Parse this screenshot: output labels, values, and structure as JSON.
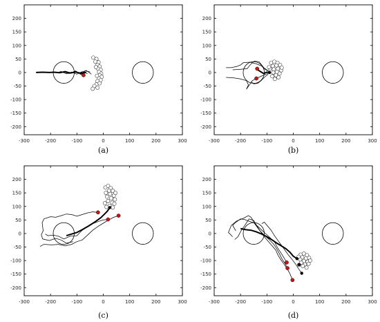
{
  "chart_data": [
    {
      "type": "scatter",
      "label": "(a)",
      "xlim": [
        -300,
        300
      ],
      "ylim": [
        -230,
        250
      ],
      "xticks": [
        -300,
        -200,
        -100,
        0,
        100,
        200,
        300
      ],
      "yticks": [
        -200,
        -150,
        -100,
        -50,
        0,
        50,
        100,
        150,
        200
      ],
      "circles": [
        {
          "cx": -150,
          "cy": 0,
          "r": 40
        },
        {
          "cx": 150,
          "cy": 0,
          "r": 40
        }
      ],
      "swarm": [
        [
          -38,
          55
        ],
        [
          -26,
          50
        ],
        [
          -30,
          40
        ],
        [
          -18,
          38
        ],
        [
          -22,
          28
        ],
        [
          -14,
          22
        ],
        [
          -20,
          14
        ],
        [
          -10,
          10
        ],
        [
          -16,
          2
        ],
        [
          -8,
          -4
        ],
        [
          -14,
          -10
        ],
        [
          -6,
          -16
        ],
        [
          -16,
          -22
        ],
        [
          -10,
          -28
        ],
        [
          -22,
          -32
        ],
        [
          -14,
          -40
        ],
        [
          -26,
          -44
        ],
        [
          -34,
          -50
        ],
        [
          -22,
          -56
        ],
        [
          -40,
          -60
        ],
        [
          -28,
          20
        ],
        [
          -24,
          -12
        ]
      ],
      "red_agents": [
        [
          -75,
          -10
        ]
      ],
      "black_agents": [],
      "bold_paths": [
        [
          [
            -65,
            0
          ],
          [
            -85,
            -3
          ],
          [
            -105,
            2
          ],
          [
            -125,
            -2
          ],
          [
            -145,
            3
          ],
          [
            -165,
            -1
          ],
          [
            -185,
            1
          ],
          [
            -205,
            0
          ],
          [
            -230,
            1
          ],
          [
            -255,
            0
          ]
        ]
      ],
      "thin_paths": [
        [
          [
            -50,
            2
          ],
          [
            -70,
            6
          ],
          [
            -90,
            -2
          ],
          [
            -110,
            4
          ],
          [
            -130,
            -4
          ],
          [
            -150,
            2
          ],
          [
            -170,
            -2
          ],
          [
            -190,
            3
          ]
        ],
        [
          [
            -60,
            -4
          ],
          [
            -80,
            3
          ],
          [
            -100,
            -6
          ],
          [
            -120,
            2
          ],
          [
            -140,
            -5
          ],
          [
            -160,
            4
          ],
          [
            -180,
            -2
          ]
        ],
        [
          [
            -45,
            -6
          ],
          [
            -65,
            8
          ],
          [
            -85,
            -8
          ],
          [
            -105,
            6
          ],
          [
            -125,
            -3
          ],
          [
            -145,
            5
          ]
        ]
      ]
    },
    {
      "type": "scatter",
      "label": "(b)",
      "xlim": [
        -300,
        300
      ],
      "ylim": [
        -230,
        250
      ],
      "xticks": [
        -300,
        -200,
        -100,
        0,
        100,
        200,
        300
      ],
      "yticks": [
        -200,
        -150,
        -100,
        -50,
        0,
        50,
        100,
        150,
        200
      ],
      "circles": [
        {
          "cx": -150,
          "cy": 0,
          "r": 40
        },
        {
          "cx": 150,
          "cy": 0,
          "r": 40
        }
      ],
      "swarm": [
        [
          -84,
          36
        ],
        [
          -72,
          40
        ],
        [
          -60,
          36
        ],
        [
          -50,
          28
        ],
        [
          -64,
          26
        ],
        [
          -78,
          24
        ],
        [
          -88,
          14
        ],
        [
          -74,
          12
        ],
        [
          -58,
          14
        ],
        [
          -46,
          8
        ],
        [
          -62,
          2
        ],
        [
          -76,
          0
        ],
        [
          -52,
          -4
        ],
        [
          -66,
          -10
        ],
        [
          -80,
          -14
        ],
        [
          -56,
          -18
        ],
        [
          -70,
          -24
        ],
        [
          -92,
          20
        ],
        [
          -44,
          18
        ]
      ],
      "red_agents": [
        [
          -137,
          14
        ],
        [
          -140,
          -22
        ]
      ],
      "black_agents": [
        [
          -90,
          0
        ]
      ],
      "bold_paths": [
        [
          [
            -90,
            0
          ],
          [
            -102,
            1
          ],
          [
            -112,
            -4
          ],
          [
            -122,
            2
          ],
          [
            -132,
            8
          ],
          [
            -137,
            14
          ]
        ]
      ],
      "thin_paths": [
        [
          [
            -92,
            4
          ],
          [
            -108,
            12
          ],
          [
            -120,
            24
          ],
          [
            -140,
            32
          ],
          [
            -165,
            38
          ],
          [
            -190,
            36
          ],
          [
            -200,
            28
          ],
          [
            -215,
            22
          ],
          [
            -235,
            18
          ],
          [
            -255,
            18
          ]
        ],
        [
          [
            -92,
            -2
          ],
          [
            -108,
            -8
          ],
          [
            -122,
            -14
          ],
          [
            -140,
            -22
          ],
          [
            -155,
            -30
          ],
          [
            -168,
            -48
          ],
          [
            -178,
            -62
          ],
          [
            -170,
            -46
          ],
          [
            -178,
            -30
          ],
          [
            -200,
            -24
          ],
          [
            -225,
            -20
          ],
          [
            -255,
            -18
          ]
        ],
        [
          [
            -95,
            -6
          ],
          [
            -110,
            -18
          ],
          [
            -122,
            -30
          ],
          [
            -135,
            -40
          ],
          [
            -150,
            -42
          ],
          [
            -160,
            -34
          ]
        ],
        [
          [
            -95,
            6
          ],
          [
            -112,
            18
          ],
          [
            -130,
            40
          ],
          [
            -148,
            42
          ],
          [
            -162,
            30
          ],
          [
            -175,
            14
          ],
          [
            -200,
            12
          ],
          [
            -230,
            10
          ]
        ]
      ]
    },
    {
      "type": "scatter",
      "label": "(c)",
      "xlim": [
        -300,
        300
      ],
      "ylim": [
        -230,
        250
      ],
      "xticks": [
        -300,
        -200,
        -100,
        0,
        100,
        200,
        300
      ],
      "yticks": [
        -200,
        -150,
        -100,
        -50,
        0,
        50,
        100,
        150,
        200
      ],
      "circles": [
        {
          "cx": -150,
          "cy": 0,
          "r": 40
        },
        {
          "cx": 150,
          "cy": 0,
          "r": 40
        }
      ],
      "swarm": [
        [
          8,
          170
        ],
        [
          18,
          176
        ],
        [
          28,
          168
        ],
        [
          36,
          158
        ],
        [
          22,
          158
        ],
        [
          10,
          150
        ],
        [
          26,
          146
        ],
        [
          40,
          140
        ],
        [
          14,
          136
        ],
        [
          30,
          130
        ],
        [
          44,
          126
        ],
        [
          18,
          120
        ],
        [
          34,
          114
        ],
        [
          6,
          112
        ],
        [
          24,
          102
        ],
        [
          42,
          110
        ],
        [
          12,
          98
        ],
        [
          36,
          96
        ],
        [
          46,
          150
        ]
      ],
      "red_agents": [
        [
          -20,
          78
        ],
        [
          18,
          52
        ],
        [
          58,
          66
        ]
      ],
      "black_agents": [
        [
          25,
          96
        ]
      ],
      "bold_paths": [
        [
          [
            25,
            96
          ],
          [
            15,
            82
          ],
          [
            5,
            72
          ],
          [
            -10,
            58
          ],
          [
            -30,
            44
          ],
          [
            -55,
            28
          ],
          [
            -80,
            14
          ],
          [
            -100,
            4
          ],
          [
            -120,
            -2
          ],
          [
            -140,
            -8
          ]
        ]
      ],
      "thin_paths": [
        [
          [
            -20,
            78
          ],
          [
            -40,
            80
          ],
          [
            -60,
            76
          ],
          [
            -80,
            70
          ],
          [
            -100,
            64
          ],
          [
            -120,
            70
          ],
          [
            -140,
            72
          ],
          [
            -160,
            66
          ],
          [
            -180,
            60
          ],
          [
            -200,
            62
          ],
          [
            -225,
            54
          ],
          [
            -232,
            40
          ],
          [
            -228,
            10
          ],
          [
            -235,
            -4
          ],
          [
            -230,
            -20
          ],
          [
            -205,
            -26
          ],
          [
            -180,
            -18
          ],
          [
            -160,
            -24
          ],
          [
            -140,
            -36
          ],
          [
            -115,
            -30
          ]
        ],
        [
          [
            18,
            52
          ],
          [
            0,
            50
          ],
          [
            -20,
            44
          ],
          [
            -40,
            36
          ],
          [
            -62,
            24
          ],
          [
            -82,
            10
          ],
          [
            -100,
            -8
          ],
          [
            -125,
            -10
          ],
          [
            -150,
            -20
          ],
          [
            -170,
            -10
          ],
          [
            -190,
            -6
          ],
          [
            -210,
            -8
          ],
          [
            -220,
            -2
          ]
        ],
        [
          [
            58,
            66
          ],
          [
            40,
            60
          ],
          [
            20,
            50
          ],
          [
            0,
            38
          ],
          [
            -20,
            26
          ],
          [
            -40,
            12
          ],
          [
            -60,
            -6
          ],
          [
            -80,
            -24
          ],
          [
            -100,
            -30
          ],
          [
            -120,
            -40
          ],
          [
            -145,
            -46
          ],
          [
            -170,
            -40
          ],
          [
            -195,
            -42
          ],
          [
            -225,
            -40
          ],
          [
            -240,
            -48
          ]
        ]
      ]
    },
    {
      "type": "scatter",
      "label": "(d)",
      "xlim": [
        -300,
        300
      ],
      "ylim": [
        -230,
        250
      ],
      "xticks": [
        -300,
        -200,
        -100,
        0,
        100,
        200,
        300
      ],
      "yticks": [
        -200,
        -150,
        -100,
        -50,
        0,
        50,
        100,
        150,
        200
      ],
      "circles": [
        {
          "cx": -150,
          "cy": 0,
          "r": 40
        },
        {
          "cx": 150,
          "cy": 0,
          "r": 40
        }
      ],
      "swarm": [
        [
          28,
          -78
        ],
        [
          40,
          -74
        ],
        [
          52,
          -80
        ],
        [
          34,
          -88
        ],
        [
          48,
          -92
        ],
        [
          60,
          -90
        ],
        [
          26,
          -96
        ],
        [
          40,
          -102
        ],
        [
          54,
          -104
        ],
        [
          30,
          -108
        ],
        [
          44,
          -114
        ],
        [
          58,
          -112
        ],
        [
          36,
          -120
        ],
        [
          50,
          -126
        ],
        [
          22,
          -116
        ],
        [
          64,
          -100
        ],
        [
          20,
          -86
        ]
      ],
      "red_agents": [
        [
          -25,
          -107
        ],
        [
          -22,
          -128
        ],
        [
          -3,
          -172
        ]
      ],
      "black_agents": [
        [
          14,
          -93
        ],
        [
          22,
          -115
        ],
        [
          32,
          -147
        ]
      ],
      "bold_paths": [
        [
          [
            14,
            -93
          ],
          [
            0,
            -84
          ],
          [
            -12,
            -70
          ],
          [
            -28,
            -56
          ],
          [
            -45,
            -46
          ],
          [
            -62,
            -36
          ],
          [
            -80,
            -24
          ],
          [
            -100,
            -12
          ],
          [
            -120,
            -2
          ],
          [
            -140,
            6
          ],
          [
            -160,
            12
          ],
          [
            -180,
            14
          ],
          [
            -200,
            18
          ]
        ]
      ],
      "thin_paths": [
        [
          [
            -25,
            -107
          ],
          [
            -35,
            -90
          ],
          [
            -48,
            -70
          ],
          [
            -60,
            -52
          ],
          [
            -72,
            -30
          ],
          [
            -90,
            -14
          ],
          [
            -110,
            4
          ],
          [
            -130,
            22
          ],
          [
            -150,
            40
          ],
          [
            -170,
            46
          ],
          [
            -185,
            52
          ],
          [
            -200,
            54
          ],
          [
            -220,
            40
          ],
          [
            -230,
            30
          ],
          [
            -218,
            10
          ]
        ],
        [
          [
            -22,
            -128
          ],
          [
            -32,
            -110
          ],
          [
            -44,
            -92
          ],
          [
            -52,
            -76
          ],
          [
            -62,
            -58
          ],
          [
            -74,
            -40
          ],
          [
            -92,
            -22
          ],
          [
            -110,
            -6
          ],
          [
            -128,
            12
          ],
          [
            -145,
            34
          ],
          [
            -160,
            60
          ],
          [
            -170,
            66
          ],
          [
            -190,
            56
          ],
          [
            -215,
            46
          ],
          [
            -235,
            30
          ],
          [
            -246,
            4
          ],
          [
            -230,
            -12
          ]
        ],
        [
          [
            -3,
            -172
          ],
          [
            -12,
            -150
          ],
          [
            -22,
            -132
          ],
          [
            -36,
            -112
          ],
          [
            -48,
            -96
          ],
          [
            -58,
            -80
          ],
          [
            -66,
            -62
          ],
          [
            -80,
            -46
          ],
          [
            -96,
            -28
          ],
          [
            -112,
            -10
          ],
          [
            -126,
            10
          ],
          [
            -138,
            28
          ],
          [
            -150,
            48
          ],
          [
            -168,
            54
          ],
          [
            -184,
            30
          ],
          [
            -198,
            10
          ],
          [
            -210,
            -12
          ],
          [
            -222,
            -22
          ]
        ],
        [
          [
            32,
            -147
          ],
          [
            20,
            -130
          ],
          [
            8,
            -112
          ],
          [
            -6,
            -94
          ],
          [
            -18,
            -80
          ],
          [
            -30,
            -64
          ],
          [
            -40,
            -50
          ],
          [
            -55,
            -30
          ],
          [
            -70,
            -10
          ],
          [
            -84,
            12
          ],
          [
            -98,
            28
          ],
          [
            -110,
            42
          ],
          [
            -120,
            36
          ]
        ]
      ]
    }
  ]
}
